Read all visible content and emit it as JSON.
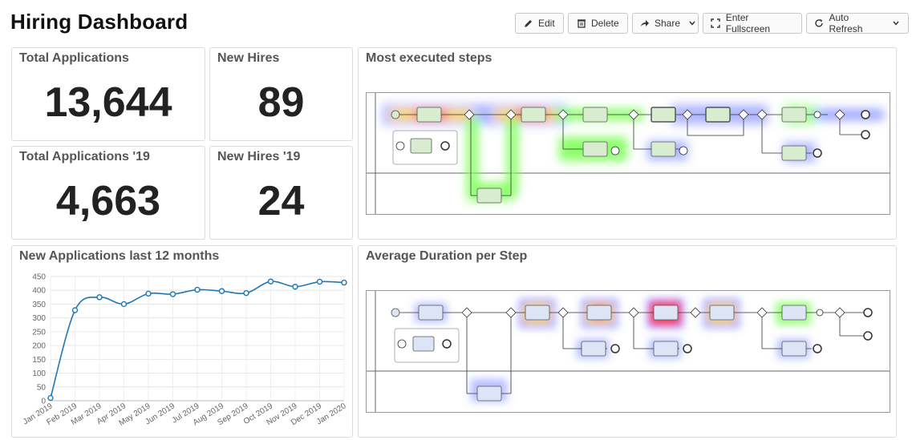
{
  "header": {
    "title": "Hiring Dashboard"
  },
  "toolbar": {
    "edit": "Edit",
    "delete": "Delete",
    "share": "Share",
    "fullscreen": "Enter Fullscreen",
    "auto_refresh": "Auto Refresh"
  },
  "icons": {
    "edit": "pencil-icon",
    "delete": "trash-icon",
    "share": "share-arrow-icon",
    "fullscreen": "fullscreen-icon",
    "auto_refresh": "refresh-icon",
    "caret": "chevron-down-icon"
  },
  "kpis": {
    "total_applications": {
      "title": "Total Applications",
      "value": "13,644"
    },
    "new_hires": {
      "title": "New Hires",
      "value": "89"
    },
    "total_applications_19": {
      "title": "Total Applications '19",
      "value": "4,663"
    },
    "new_hires_19": {
      "title": "New Hires '19",
      "value": "24"
    }
  },
  "heatmaps": {
    "most_executed": {
      "title": "Most executed steps"
    },
    "avg_duration": {
      "title": "Average Duration per Step"
    }
  },
  "colors": {
    "line": "#1f77b4",
    "heat_hot": "#ff3b1f",
    "heat_warm": "#ffd23a",
    "heat_cool": "#7fff5a",
    "heat_cold": "#4a5cff"
  },
  "chart_data": {
    "type": "line",
    "title": "New Applications last 12 months",
    "xlabel": "",
    "ylabel": "",
    "categories": [
      "Jan 2019",
      "Feb 2019",
      "Mar 2019",
      "Apr 2019",
      "May 2019",
      "Jun 2019",
      "Jul 2019",
      "Aug 2019",
      "Sep 2019",
      "Oct 2019",
      "Nov 2019",
      "Dec 2019",
      "Jan 2020"
    ],
    "values": [
      10,
      328,
      375,
      350,
      388,
      386,
      402,
      397,
      390,
      432,
      413,
      431,
      428
    ],
    "ylim": [
      0,
      450
    ],
    "yticks": [
      0,
      50,
      100,
      150,
      200,
      250,
      300,
      350,
      400,
      450
    ],
    "grid": true
  }
}
